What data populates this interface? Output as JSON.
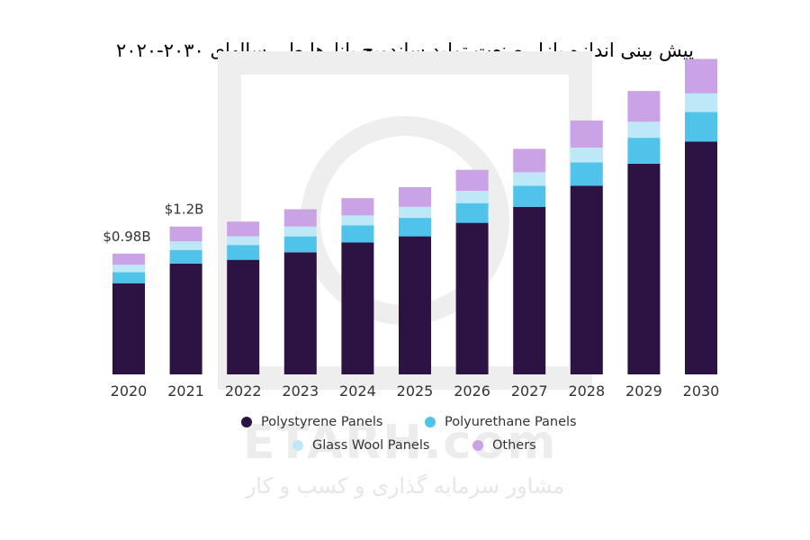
{
  "title": "پیش بینی اندازه بازار صنعت تولید ساندویچ پانل‌ها طی سالهای ۲۰۳۰-۲۰۲۰",
  "watermark": {
    "brand": "ETARH.com",
    "subtitle": "مشاور سرمایه گذاری و کسب و کار"
  },
  "chart_data": {
    "type": "bar",
    "stacked": true,
    "categories": [
      "2020",
      "2021",
      "2022",
      "2023",
      "2024",
      "2025",
      "2026",
      "2027",
      "2028",
      "2029",
      "2030"
    ],
    "series": [
      {
        "name": "Polystyrene Panels",
        "color": "#2d1244",
        "values": [
          0.74,
          0.9,
          0.93,
          0.99,
          1.07,
          1.12,
          1.23,
          1.36,
          1.53,
          1.71,
          1.89
        ]
      },
      {
        "name": "Polyurethane Panels",
        "color": "#4fc3ea",
        "values": [
          0.09,
          0.11,
          0.12,
          0.13,
          0.14,
          0.15,
          0.16,
          0.17,
          0.19,
          0.21,
          0.24
        ]
      },
      {
        "name": "Glass Wool Panels",
        "color": "#bde8f7",
        "values": [
          0.06,
          0.07,
          0.07,
          0.08,
          0.08,
          0.09,
          0.1,
          0.11,
          0.12,
          0.13,
          0.15
        ]
      },
      {
        "name": "Others",
        "color": "#c9a3e6",
        "values": [
          0.09,
          0.12,
          0.12,
          0.14,
          0.14,
          0.16,
          0.17,
          0.19,
          0.22,
          0.25,
          0.28
        ]
      }
    ],
    "data_labels": [
      {
        "category": "2020",
        "text": "$0.98B"
      },
      {
        "category": "2021",
        "text": "$1.2B"
      }
    ],
    "ylim": [
      0,
      2.6
    ],
    "grid": false,
    "legend_position": "bottom"
  }
}
